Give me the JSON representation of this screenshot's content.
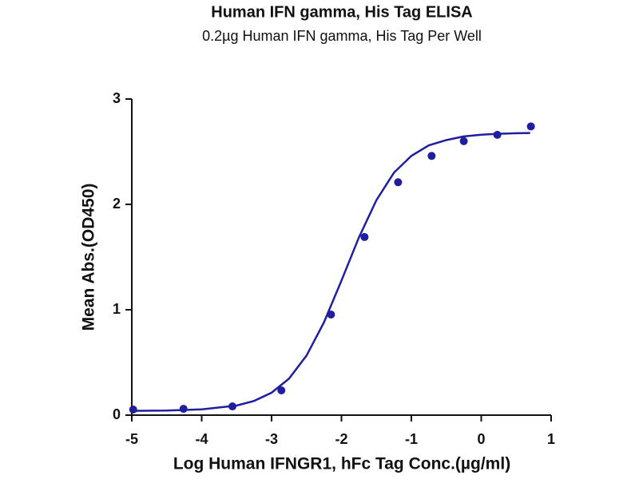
{
  "chart_data": {
    "type": "scatter",
    "title": "Human IFN gamma, His Tag ELISA",
    "subtitle": "0.2µg Human IFN gamma, His Tag Per Well",
    "xlabel": "Log Human IFNGR1, hFc Tag Conc.(µg/ml)",
    "ylabel": "Mean Abs.(OD450)",
    "color": "#1f1f9e",
    "x": [
      -4.98,
      -4.26,
      -3.56,
      -2.86,
      -2.15,
      -1.67,
      -1.19,
      -0.71,
      -0.25,
      0.23,
      0.71
    ],
    "values": [
      0.053,
      0.06,
      0.083,
      0.235,
      0.955,
      1.69,
      2.21,
      2.46,
      2.6,
      2.66,
      2.74
    ],
    "fit": {
      "x": [
        -5,
        -4.5,
        -4,
        -3.5,
        -3.25,
        -3,
        -2.75,
        -2.5,
        -2.25,
        -2,
        -1.75,
        -1.5,
        -1.25,
        -1,
        -0.75,
        -0.5,
        -0.25,
        0,
        0.25,
        0.5,
        0.7
      ],
      "values": [
        0.041,
        0.044,
        0.055,
        0.091,
        0.135,
        0.213,
        0.347,
        0.565,
        0.881,
        1.277,
        1.687,
        2.04,
        2.3,
        2.46,
        2.56,
        2.61,
        2.645,
        2.661,
        2.67,
        2.675,
        2.677
      ]
    },
    "xlim": [
      -5,
      1
    ],
    "xticks": [
      -5,
      -4,
      -3,
      -2,
      -1,
      0,
      1
    ],
    "ylim": [
      0,
      3
    ],
    "yticks": [
      0,
      1,
      2,
      3
    ]
  }
}
